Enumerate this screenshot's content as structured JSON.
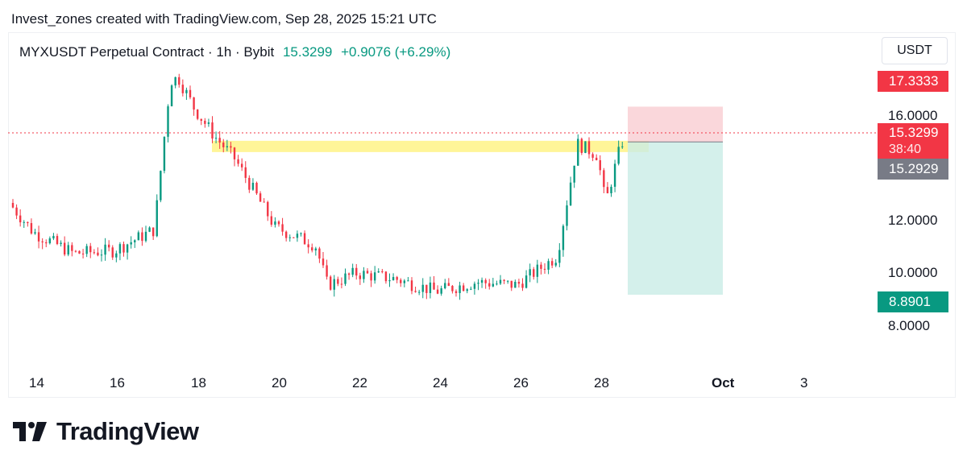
{
  "header": {
    "credit": "Invest_zones created with TradingView.com, Sep 28, 2025 15:21 UTC"
  },
  "legend": {
    "symbol": "MYXUSDT Perpetual Contract · 1h · Bybit",
    "last": "15.3299",
    "change": "+0.9076 (+6.29%)"
  },
  "axis": {
    "unit": "USDT",
    "price_ticks": [
      "16.0000",
      "12.0000",
      "10.0000",
      "8.0000"
    ],
    "date_ticks": [
      "14",
      "16",
      "18",
      "20",
      "22",
      "24",
      "26",
      "28",
      "Oct",
      "3"
    ]
  },
  "tags": {
    "stop": "17.3333",
    "last_price": "15.3299",
    "countdown": "38:40",
    "entry": "15.2929",
    "target": "8.8901"
  },
  "colors": {
    "up": "#089981",
    "down": "#f23645",
    "zone": "#fff176",
    "stop_zone": "#f8c9cf",
    "target_zone": "#c9ece6",
    "entry_tag": "#787b86"
  },
  "brand": {
    "name": "TradingView"
  },
  "chart_data": {
    "type": "candlestick",
    "timeframe": "1h",
    "x_axis": "date (Sep 14 – Oct 3, 2025)",
    "y_scale": "log",
    "price_axis_ticks": [
      16.0,
      12.0,
      10.0,
      8.0
    ],
    "last_price": 15.3299,
    "change": 0.9076,
    "change_pct": 6.29,
    "short_position": {
      "entry": 15.2929,
      "stop": 17.3333,
      "target": 8.8901,
      "start": "Sep 28",
      "end": "Sep 30"
    },
    "resistance_zone": {
      "price": 15.05,
      "from": "Sep 18",
      "to": "Sep 28"
    },
    "approx_path": [
      [
        "Sep 13",
        13.2
      ],
      [
        "Sep 14",
        11.1
      ],
      [
        "Sep 15",
        10.3
      ],
      [
        "Sep 16",
        10.4
      ],
      [
        "Sep 17",
        11.2
      ],
      [
        "Sep 17.4",
        19.0
      ],
      [
        "Sep 17.6",
        19.2
      ],
      [
        "Sep 18",
        17.2
      ],
      [
        "Sep 18.5",
        15.6
      ],
      [
        "Sep 19",
        14.4
      ],
      [
        "Sep 20",
        11.3
      ],
      [
        "Sep 21",
        10.6
      ],
      [
        "Sep 21.3",
        9.2
      ],
      [
        "Sep 22",
        9.6
      ],
      [
        "Sep 23",
        9.4
      ],
      [
        "Sep 24",
        9.0
      ],
      [
        "Sep 25",
        9.3
      ],
      [
        "Sep 26",
        9.2
      ],
      [
        "Sep 27",
        10.2
      ],
      [
        "Sep 27.5",
        15.2
      ],
      [
        "Sep 28",
        14.6
      ],
      [
        "Sep 28.2",
        12.3
      ],
      [
        "Sep 28.6",
        15.3
      ]
    ]
  }
}
